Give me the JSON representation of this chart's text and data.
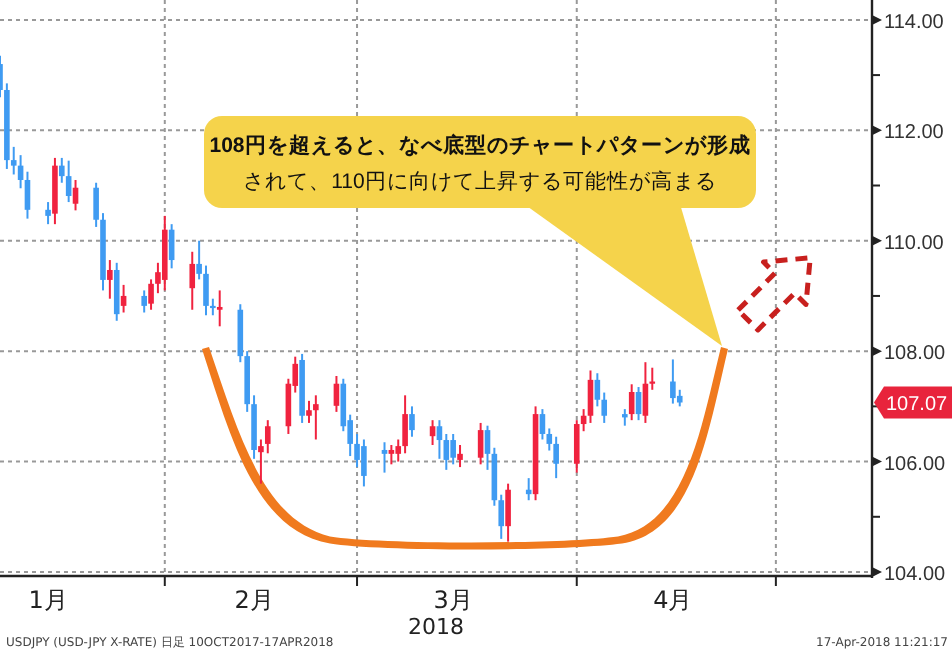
{
  "chart_data": {
    "type": "candlestick",
    "x": [
      "2018-01-08",
      "2018-01-09",
      "2018-01-10",
      "2018-01-11",
      "2018-01-12",
      "2018-01-15",
      "2018-01-16",
      "2018-01-17",
      "2018-01-18",
      "2018-01-19",
      "2018-01-22",
      "2018-01-23",
      "2018-01-24",
      "2018-01-25",
      "2018-01-26",
      "2018-01-29",
      "2018-01-30",
      "2018-01-31",
      "2018-02-01",
      "2018-02-02",
      "2018-02-05",
      "2018-02-06",
      "2018-02-07",
      "2018-02-08",
      "2018-02-09",
      "2018-02-12",
      "2018-02-13",
      "2018-02-14",
      "2018-02-15",
      "2018-02-16",
      "2018-02-19",
      "2018-02-20",
      "2018-02-21",
      "2018-02-22",
      "2018-02-23",
      "2018-02-26",
      "2018-02-27",
      "2018-02-28",
      "2018-03-01",
      "2018-03-02",
      "2018-03-05",
      "2018-03-06",
      "2018-03-07",
      "2018-03-08",
      "2018-03-09",
      "2018-03-12",
      "2018-03-13",
      "2018-03-14",
      "2018-03-15",
      "2018-03-16",
      "2018-03-19",
      "2018-03-20",
      "2018-03-21",
      "2018-03-22",
      "2018-03-23",
      "2018-03-26",
      "2018-03-27",
      "2018-03-28",
      "2018-03-29",
      "2018-03-30",
      "2018-04-02",
      "2018-04-03",
      "2018-04-04",
      "2018-04-05",
      "2018-04-06",
      "2018-04-09",
      "2018-04-10",
      "2018-04-11",
      "2018-04-12",
      "2018-04-13",
      "2018-04-16",
      "2018-04-17"
    ],
    "ohlc": [
      [
        113.2,
        113.35,
        112.6,
        112.73
      ],
      [
        112.73,
        112.85,
        111.3,
        111.46
      ],
      [
        111.46,
        111.7,
        111.2,
        111.36
      ],
      [
        111.36,
        111.55,
        110.95,
        111.1
      ],
      [
        111.1,
        111.25,
        110.4,
        110.56
      ],
      [
        110.56,
        110.7,
        110.3,
        110.45
      ],
      [
        110.49,
        111.5,
        110.3,
        111.36
      ],
      [
        111.36,
        111.5,
        111.05,
        111.17
      ],
      [
        111.17,
        111.45,
        110.7,
        110.81
      ],
      [
        110.67,
        111.1,
        110.55,
        110.96
      ],
      [
        110.96,
        111.05,
        110.25,
        110.38
      ],
      [
        110.38,
        110.5,
        109.1,
        109.29
      ],
      [
        109.29,
        109.65,
        108.95,
        109.47
      ],
      [
        109.47,
        109.6,
        108.55,
        108.67
      ],
      [
        108.82,
        109.2,
        108.7,
        109.0
      ],
      [
        109.0,
        109.1,
        108.7,
        108.82
      ],
      [
        108.86,
        109.3,
        108.75,
        109.22
      ],
      [
        109.22,
        109.6,
        109.05,
        109.43
      ],
      [
        109.29,
        110.45,
        109.1,
        110.2
      ],
      [
        110.2,
        110.3,
        109.5,
        109.65
      ],
      [
        109.14,
        109.8,
        108.75,
        109.58
      ],
      [
        109.58,
        110.0,
        109.3,
        109.4
      ],
      [
        109.4,
        109.55,
        108.65,
        108.82
      ],
      [
        108.82,
        108.95,
        108.65,
        108.78
      ],
      [
        108.75,
        109.1,
        108.45,
        108.8
      ],
      [
        108.75,
        108.85,
        107.8,
        107.91
      ],
      [
        107.91,
        108.0,
        106.9,
        107.04
      ],
      [
        107.04,
        107.2,
        106.05,
        106.21
      ],
      [
        106.17,
        106.4,
        105.6,
        106.28
      ],
      [
        106.32,
        106.75,
        106.15,
        106.64
      ],
      [
        106.64,
        107.5,
        106.5,
        107.41
      ],
      [
        107.37,
        107.9,
        107.25,
        107.77
      ],
      [
        107.84,
        107.95,
        106.7,
        106.83
      ],
      [
        106.83,
        107.1,
        106.7,
        106.93
      ],
      [
        106.93,
        107.2,
        106.4,
        107.04
      ],
      [
        107.01,
        107.55,
        106.9,
        107.41
      ],
      [
        107.41,
        107.5,
        106.55,
        106.64
      ],
      [
        106.75,
        106.85,
        106.1,
        106.32
      ],
      [
        106.32,
        106.5,
        105.9,
        106.03
      ],
      [
        106.28,
        106.4,
        105.55,
        105.74
      ],
      [
        106.21,
        106.35,
        105.8,
        106.14
      ],
      [
        106.14,
        106.3,
        105.95,
        106.21
      ],
      [
        106.14,
        106.4,
        106.0,
        106.28
      ],
      [
        106.28,
        107.2,
        106.15,
        106.86
      ],
      [
        106.86,
        107.0,
        106.45,
        106.57
      ],
      [
        106.46,
        106.75,
        106.3,
        106.64
      ],
      [
        106.64,
        106.75,
        106.05,
        106.39
      ],
      [
        106.39,
        106.5,
        105.85,
        106.03
      ],
      [
        106.39,
        106.5,
        105.95,
        106.07
      ],
      [
        106.03,
        106.3,
        105.9,
        106.14
      ],
      [
        106.07,
        106.7,
        105.95,
        106.57
      ],
      [
        106.57,
        106.65,
        105.85,
        106.14
      ],
      [
        106.14,
        106.25,
        105.2,
        105.3
      ],
      [
        105.3,
        105.4,
        104.6,
        104.83
      ],
      [
        104.83,
        105.6,
        104.55,
        105.49
      ],
      [
        105.49,
        105.7,
        105.3,
        105.41
      ],
      [
        105.41,
        107.0,
        105.3,
        106.86
      ],
      [
        106.86,
        106.95,
        106.4,
        106.5
      ],
      [
        106.5,
        106.6,
        106.2,
        106.32
      ],
      [
        106.32,
        106.45,
        105.7,
        105.96
      ],
      [
        105.96,
        106.75,
        105.8,
        106.68
      ],
      [
        106.68,
        106.95,
        106.55,
        106.83
      ],
      [
        106.83,
        107.65,
        106.7,
        107.48
      ],
      [
        107.48,
        107.6,
        107.0,
        107.12
      ],
      [
        107.12,
        107.25,
        106.7,
        106.83
      ],
      [
        106.86,
        106.95,
        106.65,
        106.8
      ],
      [
        106.86,
        107.4,
        106.75,
        107.26
      ],
      [
        107.26,
        107.35,
        106.75,
        106.86
      ],
      [
        106.83,
        107.8,
        106.7,
        107.41
      ],
      [
        107.41,
        107.7,
        107.3,
        107.45
      ],
      [
        107.45,
        107.85,
        107.05,
        107.15
      ],
      [
        107.19,
        107.3,
        107.0,
        107.07
      ]
    ],
    "colors": [
      "#3f9bf2",
      "#3f9bf2",
      "#3f9bf2",
      "#3f9bf2",
      "#3f9bf2",
      "#3f9bf2",
      "#f0233f",
      "#3f9bf2",
      "#3f9bf2",
      "#f0233f",
      "#3f9bf2",
      "#3f9bf2",
      "#f0233f",
      "#3f9bf2",
      "#f0233f",
      "#3f9bf2",
      "#f0233f",
      "#f0233f",
      "#f0233f",
      "#3f9bf2",
      "#f0233f",
      "#3f9bf2",
      "#3f9bf2",
      "#3f9bf2",
      "#f0233f",
      "#3f9bf2",
      "#3f9bf2",
      "#3f9bf2",
      "#f0233f",
      "#f0233f",
      "#f0233f",
      "#f0233f",
      "#3f9bf2",
      "#f0233f",
      "#f0233f",
      "#f0233f",
      "#3f9bf2",
      "#3f9bf2",
      "#3f9bf2",
      "#3f9bf2",
      "#3f9bf2",
      "#f0233f",
      "#f0233f",
      "#f0233f",
      "#3f9bf2",
      "#f0233f",
      "#3f9bf2",
      "#3f9bf2",
      "#3f9bf2",
      "#f0233f",
      "#f0233f",
      "#3f9bf2",
      "#3f9bf2",
      "#3f9bf2",
      "#f0233f",
      "#3f9bf2",
      "#f0233f",
      "#3f9bf2",
      "#3f9bf2",
      "#3f9bf2",
      "#f0233f",
      "#f0233f",
      "#f0233f",
      "#3f9bf2",
      "#3f9bf2",
      "#3f9bf2",
      "#f0233f",
      "#3f9bf2",
      "#f0233f",
      "#f0233f",
      "#3f9bf2",
      "#3f9bf2"
    ],
    "xlim": [
      "2018-01-08",
      "2018-05-15"
    ],
    "xticks": [
      {
        "value": "2018-01-15",
        "label": "1月"
      },
      {
        "value": "2018-02-01",
        "label": null
      },
      {
        "value": "2018-02-14",
        "label": "2月"
      },
      {
        "value": "2018-03-01",
        "label": null
      },
      {
        "value": "2018-03-15",
        "label": "3月"
      },
      {
        "value": "2018-04-02",
        "label": null
      },
      {
        "value": "2018-04-16",
        "label": "4月"
      },
      {
        "value": "2018-05-01",
        "label": null
      }
    ],
    "ylim": [
      104,
      114.36
    ],
    "yticks": [
      {
        "value": 104,
        "label": "104.00"
      },
      {
        "value": 105,
        "label": null
      },
      {
        "value": 106,
        "label": "106.00"
      },
      {
        "value": 107,
        "label": null
      },
      {
        "value": 108,
        "label": "108.00"
      },
      {
        "value": 109,
        "label": null
      },
      {
        "value": 110,
        "label": "110.00"
      },
      {
        "value": 111,
        "label": null
      },
      {
        "value": 112,
        "label": "112.00"
      },
      {
        "value": 113,
        "label": null
      },
      {
        "value": 114,
        "label": "114.00"
      }
    ],
    "xlabel": "2018",
    "grid": true,
    "annotations": [
      "108円を超えると、なべ底型のチャートパターンが形成",
      "されて、110円に向けて上昇する可能性が高まる",
      "107.07",
      "USDJPY (USD-JPY X-RATE) 日足 10OCT2017-17APR2018",
      "17-Apr-2018 11:21:17"
    ]
  }
}
